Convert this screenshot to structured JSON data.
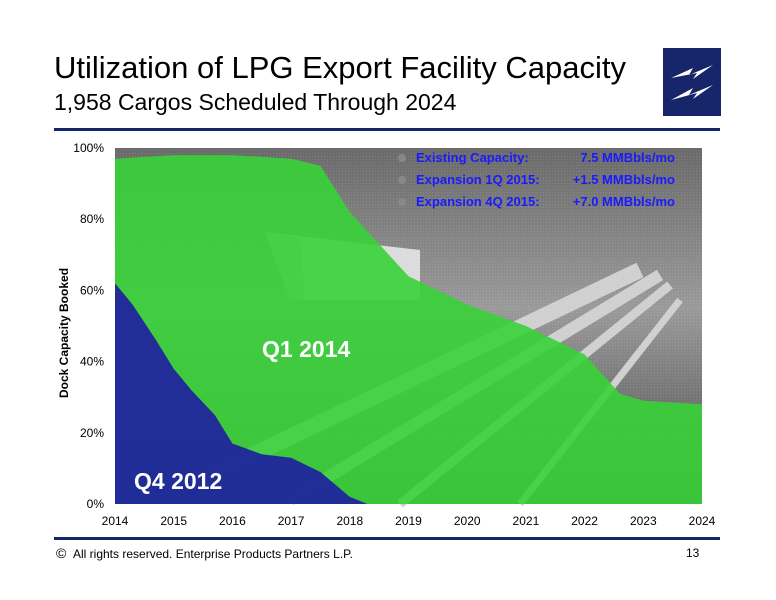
{
  "header": {
    "title": "Utilization of LPG Export Facility Capacity",
    "subtitle": "1,958 Cargos Scheduled Through 2024"
  },
  "logo": {
    "icon": "lightning-bolts-icon",
    "color": "#17256a"
  },
  "footer": {
    "copyright_symbol": "©",
    "text": "All rights reserved. Enterprise Products Partners L.P.",
    "page_number": "13"
  },
  "colors": {
    "q4_2012": "#1f1fa0",
    "q1_2014": "#39d139",
    "legend_text": "#1a1aff",
    "rule": "#17256a"
  },
  "chart_data": {
    "type": "area",
    "ylabel": "Dock Capacity Booked",
    "xlabel": "",
    "x": [
      2014,
      2015,
      2016,
      2017,
      2018,
      2019,
      2020,
      2021,
      2022,
      2023,
      2024
    ],
    "x_tick_labels": [
      "2014",
      "2015",
      "2016",
      "2017",
      "2018",
      "2019",
      "2020",
      "2021",
      "2022",
      "2023",
      "2024"
    ],
    "y_tick_labels": [
      "0%",
      "20%",
      "40%",
      "60%",
      "80%",
      "100%"
    ],
    "xlim": [
      2014,
      2024
    ],
    "ylim": [
      0,
      100
    ],
    "grid": false,
    "legend_position": "top-right",
    "legend": [
      {
        "label": "Existing Capacity:",
        "value": "7.5 MMBbls/mo"
      },
      {
        "label": "Expansion 1Q 2015:",
        "value": "+1.5 MMBbls/mo"
      },
      {
        "label": "Expansion 4Q 2015:",
        "value": "+7.0 MMBbls/mo"
      }
    ],
    "series": [
      {
        "name": "Q1 2014",
        "x": [
          2014,
          2015.0,
          2015.5,
          2016,
          2017,
          2017.5,
          2018,
          2019,
          2020,
          2021,
          2022,
          2022.6,
          2023,
          2024
        ],
        "values": [
          97,
          98,
          98,
          98,
          97,
          95,
          82,
          64,
          56,
          50,
          42,
          31,
          29,
          28
        ]
      },
      {
        "name": "Q4 2012",
        "x": [
          2014,
          2014.3,
          2014.7,
          2015.0,
          2015.3,
          2015.7,
          2016.0,
          2016.5,
          2017.0,
          2017.5,
          2018.0,
          2018.3
        ],
        "values": [
          62,
          56,
          46,
          38,
          32,
          25,
          17,
          14,
          13,
          9,
          2,
          0
        ]
      }
    ],
    "annotations": [
      "Q1 2014",
      "Q4 2012"
    ]
  }
}
